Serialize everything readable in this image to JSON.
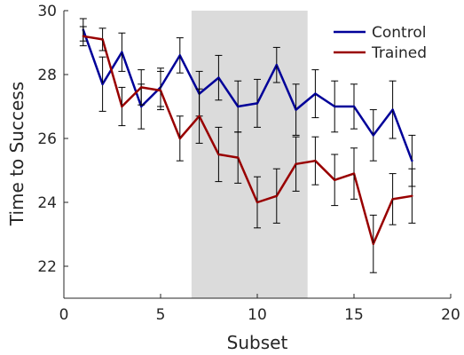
{
  "chart_data": {
    "type": "line",
    "title": "",
    "xlabel": "Subset",
    "ylabel": "Time to Success",
    "xlim": [
      0,
      20
    ],
    "ylim": [
      21,
      30
    ],
    "xticks": [
      0,
      5,
      10,
      15,
      20
    ],
    "yticks": [
      22,
      24,
      26,
      28,
      30
    ],
    "grid": false,
    "legend": "top-right",
    "shaded_region": {
      "x": [
        6.6,
        12.6
      ],
      "color": "#bdbdbd"
    },
    "x": [
      1,
      2,
      3,
      4,
      5,
      6,
      7,
      8,
      9,
      10,
      11,
      12,
      13,
      14,
      15,
      16,
      17,
      18
    ],
    "series": [
      {
        "name": "Control",
        "color": "#000099",
        "values": [
          29.4,
          27.7,
          28.7,
          27.0,
          27.6,
          28.6,
          27.4,
          27.9,
          27.0,
          27.1,
          28.3,
          26.9,
          27.4,
          27.0,
          27.0,
          26.1,
          26.9,
          25.3
        ],
        "errors": [
          0.35,
          0.85,
          0.6,
          0.7,
          0.6,
          0.55,
          0.7,
          0.7,
          0.8,
          0.75,
          0.55,
          0.8,
          0.75,
          0.8,
          0.7,
          0.8,
          0.9,
          0.8
        ]
      },
      {
        "name": "Trained",
        "color": "#990000",
        "values": [
          29.2,
          29.1,
          27.0,
          27.6,
          27.5,
          26.0,
          26.7,
          25.5,
          25.4,
          24.0,
          24.2,
          25.2,
          25.3,
          24.7,
          24.9,
          22.7,
          24.1,
          24.2
        ],
        "errors": [
          0.3,
          0.35,
          0.6,
          0.55,
          0.6,
          0.7,
          0.85,
          0.85,
          0.8,
          0.8,
          0.85,
          0.85,
          0.75,
          0.8,
          0.8,
          0.9,
          0.8,
          0.85
        ]
      }
    ]
  }
}
